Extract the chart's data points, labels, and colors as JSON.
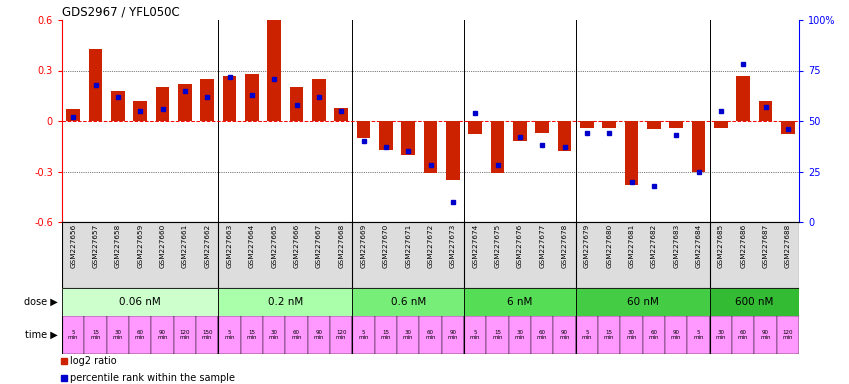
{
  "title": "GDS2967 / YFL050C",
  "samples": [
    "GSM227656",
    "GSM227657",
    "GSM227658",
    "GSM227659",
    "GSM227660",
    "GSM227661",
    "GSM227662",
    "GSM227663",
    "GSM227664",
    "GSM227665",
    "GSM227666",
    "GSM227667",
    "GSM227668",
    "GSM227669",
    "GSM227670",
    "GSM227671",
    "GSM227672",
    "GSM227673",
    "GSM227674",
    "GSM227675",
    "GSM227676",
    "GSM227677",
    "GSM227678",
    "GSM227679",
    "GSM227680",
    "GSM227681",
    "GSM227682",
    "GSM227683",
    "GSM227684",
    "GSM227685",
    "GSM227686",
    "GSM227687",
    "GSM227688"
  ],
  "log2_ratio": [
    0.07,
    0.43,
    0.18,
    0.12,
    0.2,
    0.22,
    0.25,
    0.27,
    0.28,
    0.6,
    0.2,
    0.25,
    0.08,
    -0.1,
    -0.17,
    -0.2,
    -0.31,
    -0.35,
    -0.08,
    -0.31,
    -0.12,
    -0.07,
    -0.18,
    -0.04,
    -0.04,
    -0.38,
    -0.05,
    -0.04,
    -0.3,
    -0.04,
    0.27,
    0.12,
    -0.08
  ],
  "percentile": [
    52,
    68,
    62,
    55,
    56,
    65,
    62,
    72,
    63,
    71,
    58,
    62,
    55,
    40,
    37,
    35,
    28,
    10,
    54,
    28,
    42,
    38,
    37,
    44,
    44,
    20,
    18,
    43,
    25,
    55,
    78,
    57,
    46
  ],
  "dose_groups": [
    {
      "label": "0.06 nM",
      "start": 0,
      "end": 7,
      "color": "#ccffcc"
    },
    {
      "label": "0.2 nM",
      "start": 7,
      "end": 13,
      "color": "#aaffaa"
    },
    {
      "label": "0.6 nM",
      "start": 13,
      "end": 18,
      "color": "#77ee77"
    },
    {
      "label": "6 nM",
      "start": 18,
      "end": 23,
      "color": "#55dd55"
    },
    {
      "label": "60 nM",
      "start": 23,
      "end": 29,
      "color": "#44cc44"
    },
    {
      "label": "600 nM",
      "start": 29,
      "end": 33,
      "color": "#33bb33"
    }
  ],
  "time_labels": [
    "5\nmin",
    "15\nmin",
    "30\nmin",
    "60\nmin",
    "90\nmin",
    "120\nmin",
    "150\nmin",
    "5\nmin",
    "15\nmin",
    "30\nmin",
    "60\nmin",
    "90\nmin",
    "120\nmin",
    "5\nmin",
    "15\nmin",
    "30\nmin",
    "60\nmin",
    "90\nmin",
    "5\nmin",
    "15\nmin",
    "30\nmin",
    "60\nmin",
    "90\nmin",
    "5\nmin",
    "15\nmin",
    "30\nmin",
    "60\nmin",
    "90\nmin",
    "5\nmin",
    "30\nmin",
    "60\nmin",
    "90\nmin",
    "120\nmin"
  ],
  "bar_color": "#cc2200",
  "blue_color": "#0000cc",
  "time_color": "#ff99ff",
  "label_bg": "#dddddd"
}
